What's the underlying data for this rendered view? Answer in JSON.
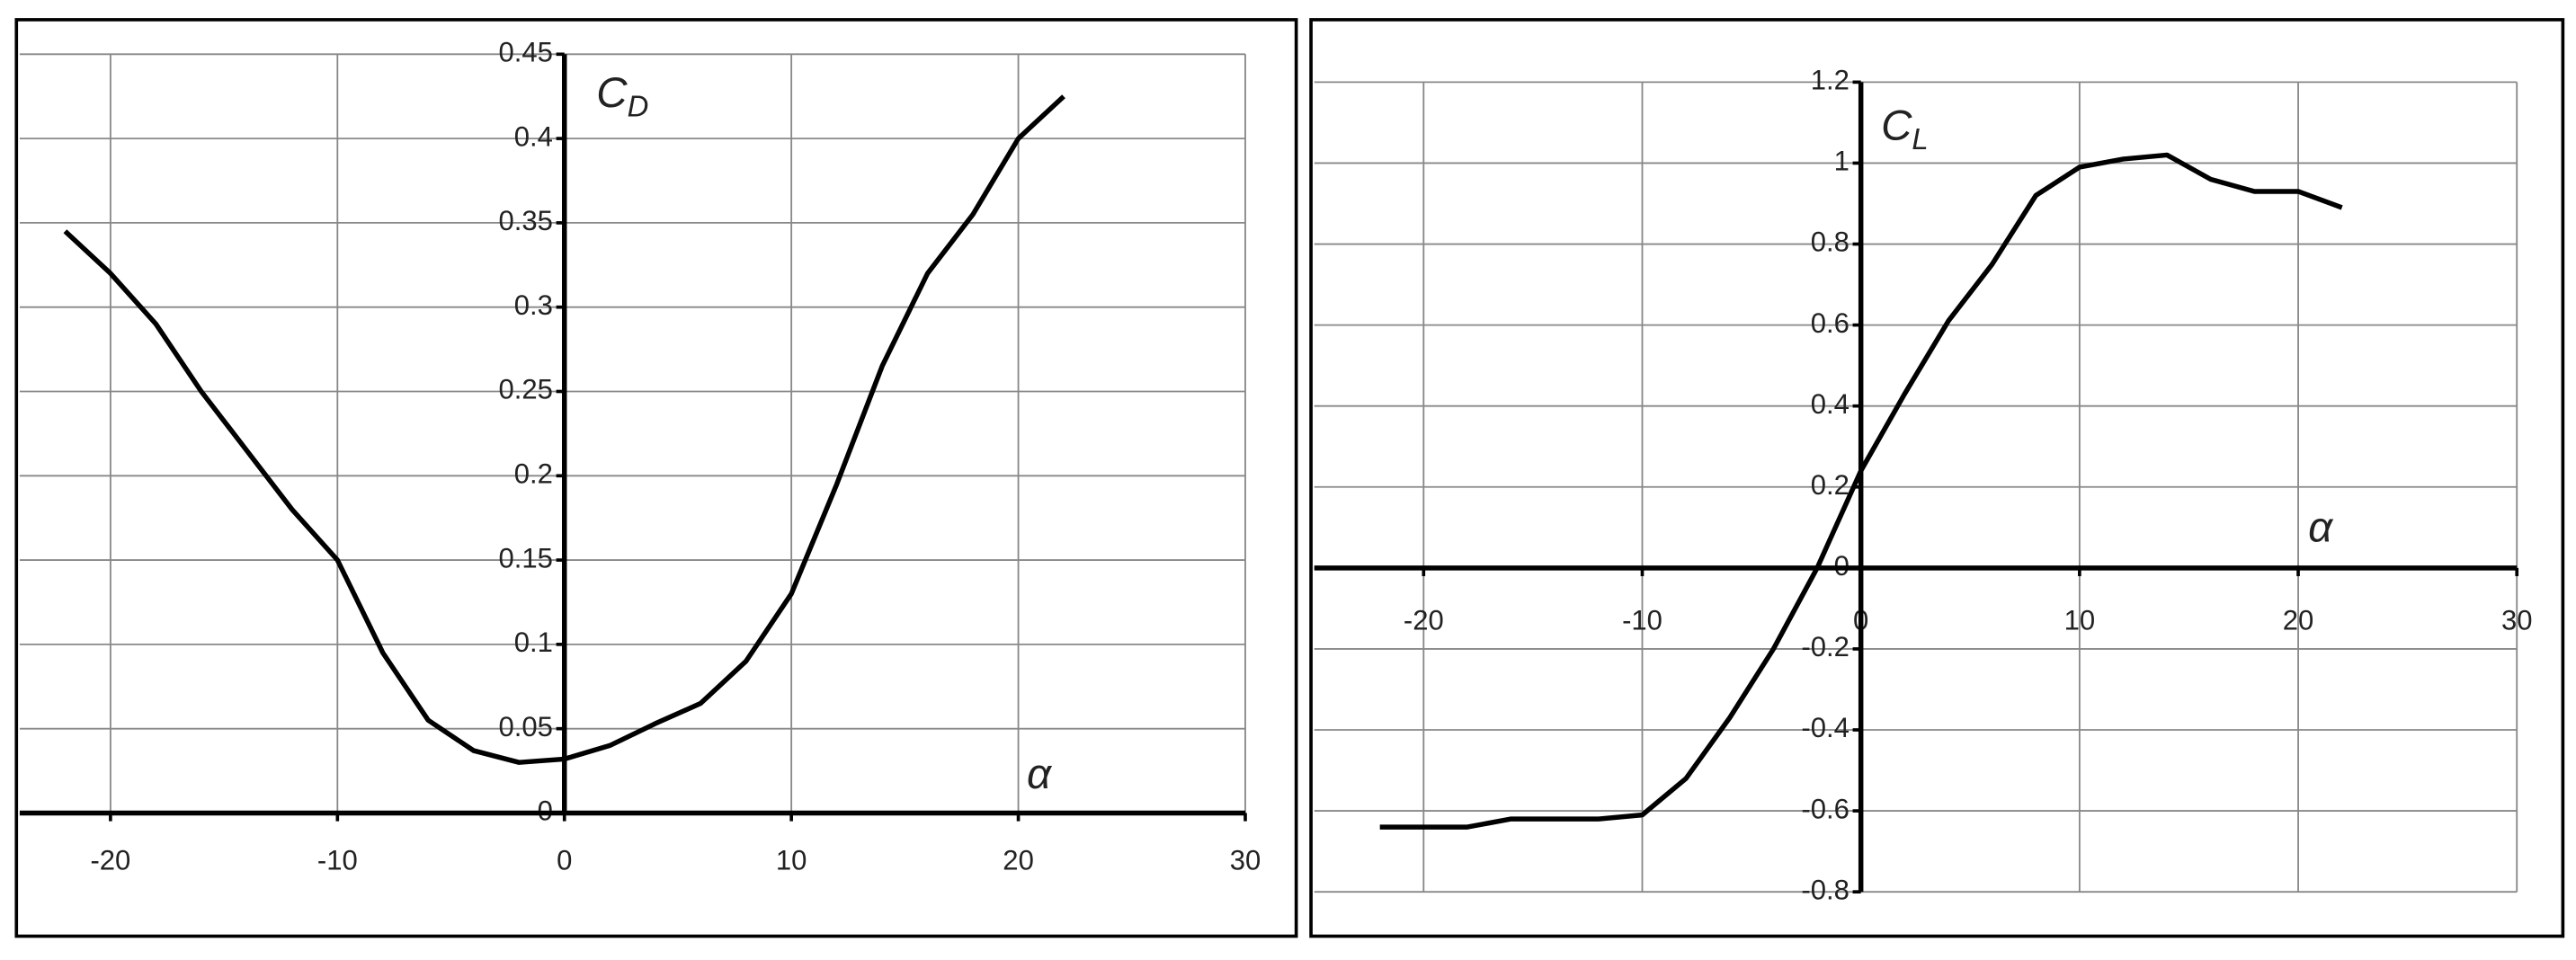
{
  "chart_data": [
    {
      "type": "line",
      "y_label": {
        "main": "C",
        "sub": "D"
      },
      "x_label": "α",
      "x": [
        -22,
        -20,
        -18,
        -16,
        -14,
        -12,
        -10,
        -8,
        -6,
        -4,
        -2,
        0,
        2,
        4,
        6,
        8,
        10,
        12,
        14,
        16,
        18,
        20,
        22
      ],
      "series": [
        {
          "color": "#000000",
          "values": [
            0.345,
            0.32,
            0.29,
            0.25,
            0.215,
            0.18,
            0.15,
            0.095,
            0.055,
            0.037,
            0.03,
            0.032,
            0.04,
            0.053,
            0.065,
            0.09,
            0.13,
            0.195,
            0.265,
            0.32,
            0.355,
            0.4,
            0.425
          ]
        }
      ],
      "xlim": [
        -24,
        30
      ],
      "ylim": [
        0,
        0.45
      ],
      "xticks": [
        -20,
        -10,
        0,
        10,
        20,
        30
      ],
      "yticks": [
        0,
        0.05,
        0.1,
        0.15,
        0.2,
        0.25,
        0.3,
        0.35,
        0.4,
        0.45
      ],
      "grid": true
    },
    {
      "type": "line",
      "y_label": {
        "main": "C",
        "sub": "L"
      },
      "x_label": "α",
      "x": [
        -22,
        -20,
        -18,
        -16,
        -14,
        -12,
        -10,
        -8,
        -6,
        -4,
        -2,
        0,
        2,
        4,
        6,
        8,
        10,
        12,
        14,
        16,
        18,
        20,
        22
      ],
      "series": [
        {
          "color": "#000000",
          "values": [
            -0.64,
            -0.64,
            -0.64,
            -0.62,
            -0.62,
            -0.62,
            -0.61,
            -0.52,
            -0.37,
            -0.2,
            0,
            0.24,
            0.43,
            0.61,
            0.75,
            0.92,
            0.99,
            1.01,
            1.02,
            0.96,
            0.93,
            0.93,
            0.89
          ]
        }
      ],
      "xlim": [
        -25,
        30
      ],
      "ylim": [
        -0.8,
        1.2
      ],
      "xticks": [
        -20,
        -10,
        0,
        10,
        20,
        30
      ],
      "yticks": [
        -0.8,
        -0.6,
        -0.4,
        -0.2,
        0,
        0.2,
        0.4,
        0.6,
        0.8,
        1,
        1.2
      ],
      "grid": true
    }
  ]
}
